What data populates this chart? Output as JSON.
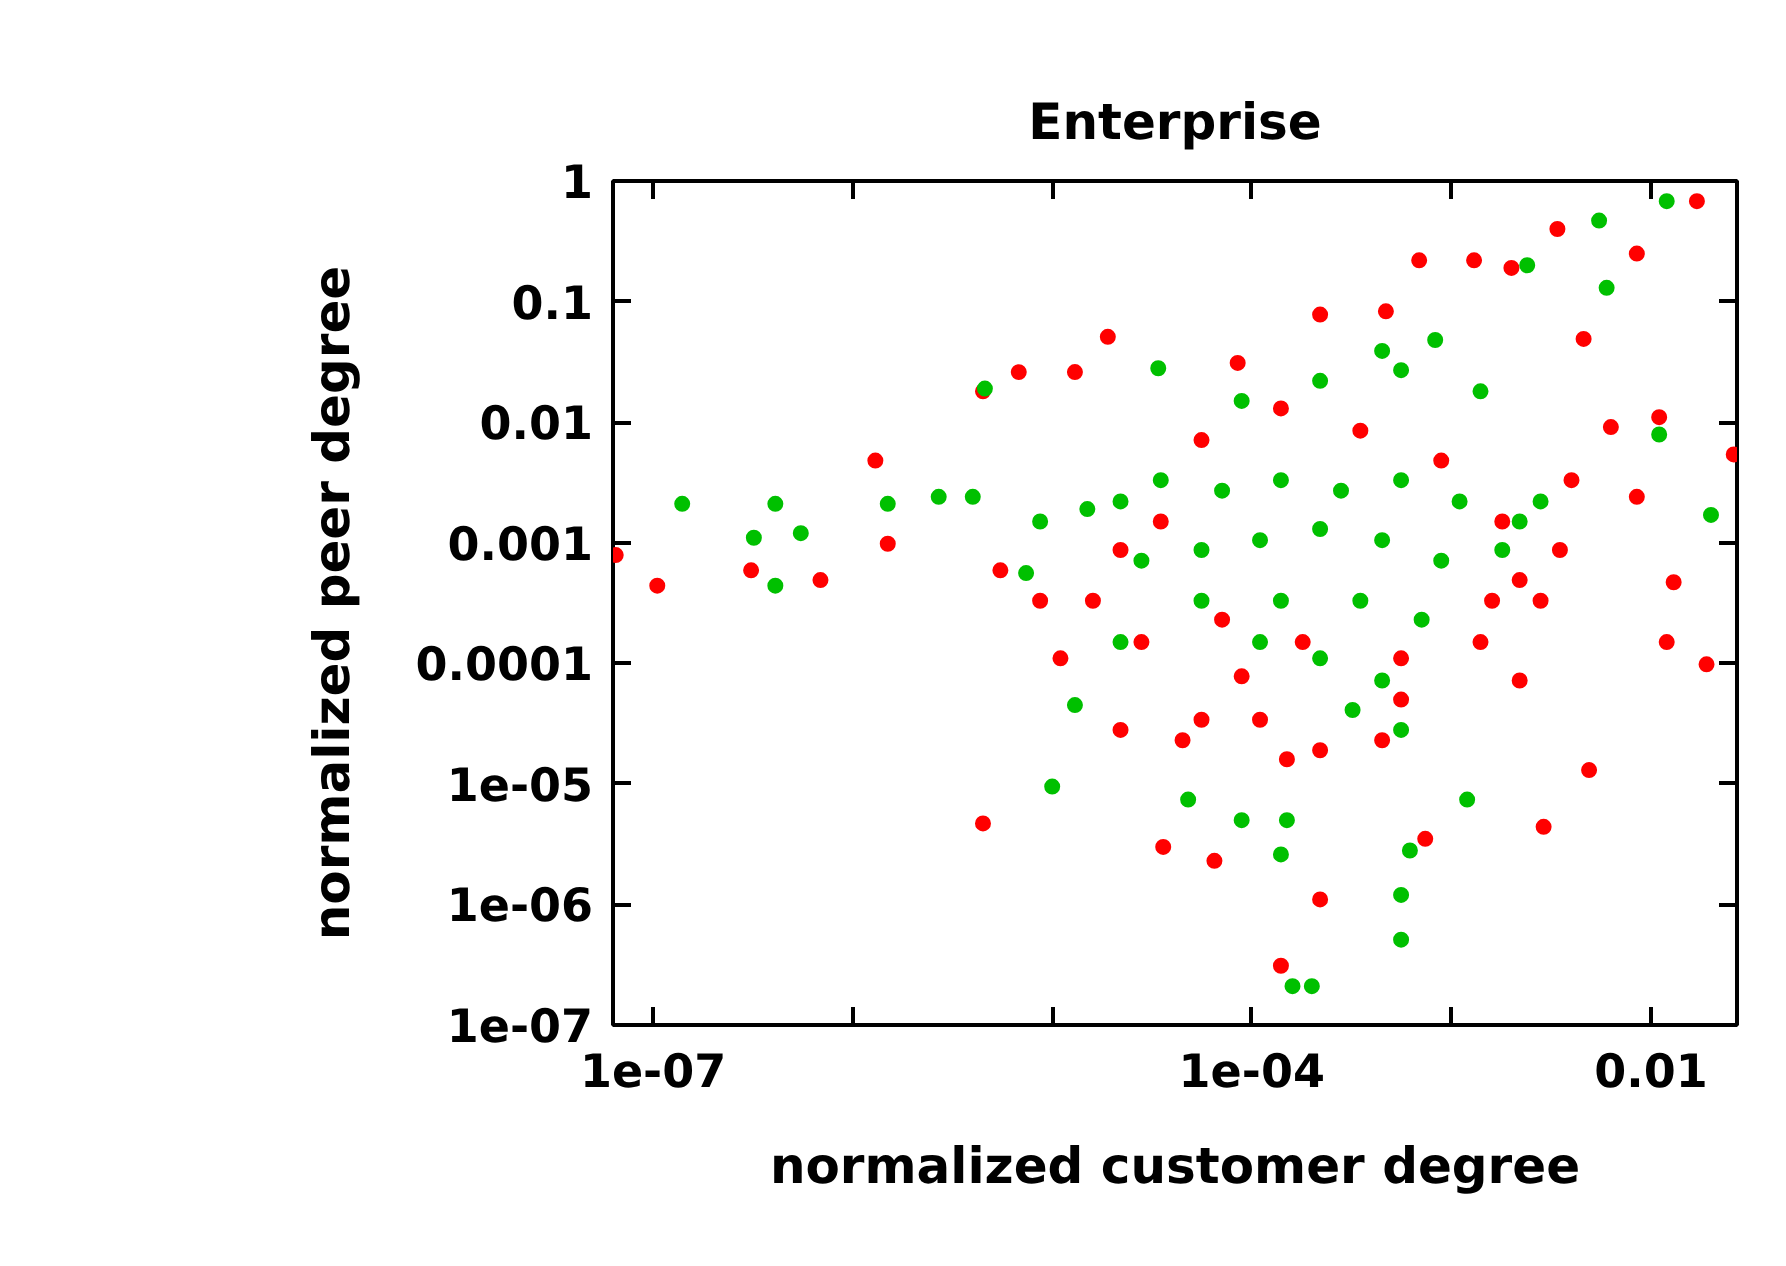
{
  "chart_data": {
    "type": "scatter",
    "title": "Enterprise",
    "xlabel": "normalized customer degree",
    "ylabel": "normalized peer degree",
    "log": "xy",
    "grid": false,
    "marker": "circle",
    "xlim": [
      6.3e-08,
      0.027
    ],
    "ylim": [
      1e-07,
      1
    ],
    "xticks": [
      {
        "value": 1e-07,
        "label": "1e-07"
      },
      {
        "value": 1e-06,
        "label": null
      },
      {
        "value": 1e-05,
        "label": null
      },
      {
        "value": 0.0001,
        "label": "1e-04"
      },
      {
        "value": 0.001,
        "label": null
      },
      0.01
    ],
    "yticks": [
      {
        "value": 1e-07,
        "label": "1e-07"
      },
      {
        "value": 1e-06,
        "label": "1e-06"
      },
      {
        "value": 1e-05,
        "label": "1e-05"
      },
      0.0001,
      0.001,
      0.01,
      0.1,
      1
    ],
    "series": [
      {
        "color": "#ff0000",
        "x": [
          6.5e-08,
          1.05e-07,
          3.1e-07,
          6.9e-07,
          1.3e-06,
          1.5e-06,
          4.5e-06,
          6.8e-06,
          4.5e-06,
          1.3e-05,
          1.9e-05,
          3.6e-05,
          6.5e-05,
          8.5e-05,
          0.00014,
          0.00022,
          0.00022,
          0.00047,
          0.00069,
          0.0013,
          0.002,
          0.0034,
          0.0085,
          0.017,
          0.0046,
          0.0063,
          0.011,
          0.012,
          0.0085,
          0.0029,
          0.0049,
          0.013,
          0.019,
          0.026,
          0.00074,
          0.00015,
          1.6e-05,
          1.1e-05,
          2.2e-05,
          5.6e-05,
          8.9e-05,
          0.00056,
          0.0022,
          0.0028,
          3.5e-05,
          5.6e-05,
          0.00014,
          0.00035,
          0.00089,
          0.0018,
          0.0022,
          0.0014,
          0.00056,
          0.00018,
          7.1e-05,
          2.8e-05,
          8.7e-06,
          5.5e-06,
          2.2e-05,
          4.5e-05,
          0.00022,
          0.00011,
          0.00045,
          0.0016,
          0.0035,
          0.004
        ],
        "values": [
          0.00079,
          0.00044,
          0.00059,
          0.00049,
          0.0048,
          0.00098,
          0.018,
          0.026,
          4.7e-06,
          0.026,
          0.051,
          3e-06,
          2.3e-06,
          0.031,
          3.1e-07,
          1.1e-06,
          0.078,
          0.083,
          0.22,
          0.22,
          0.19,
          0.4,
          0.25,
          0.68,
          0.049,
          0.0091,
          0.011,
          0.00015,
          0.0024,
          4.4e-06,
          1.3e-05,
          0.00047,
          9.8e-05,
          0.0054,
          3.5e-06,
          1.6e-05,
          0.00033,
          0.00011,
          2.8e-05,
          3.4e-05,
          7.8e-05,
          5e-05,
          7.2e-05,
          0.00033,
          0.0015,
          0.0071,
          0.013,
          0.0085,
          0.0048,
          0.0015,
          0.00049,
          0.00015,
          0.00011,
          0.00015,
          0.00023,
          0.00015,
          0.00033,
          0.00059,
          0.00087,
          2.3e-05,
          1.9e-05,
          3.4e-05,
          2.3e-05,
          0.00033,
          0.00087,
          0.0033
        ]
      },
      {
        "color": "#00c000",
        "x": [
          1.4e-07,
          3.2e-07,
          4.1e-07,
          4.1e-07,
          5.5e-07,
          1.5e-06,
          2.7e-06,
          4.6e-06,
          4e-06,
          1e-05,
          7.4e-06,
          1.3e-05,
          3.4e-05,
          8.9e-05,
          0.00016,
          0.0002,
          0.00056,
          0.00062,
          0.0012,
          0.00056,
          0.00083,
          0.0024,
          0.0055,
          0.006,
          0.012,
          0.011,
          0.02,
          4.8e-05,
          0.00015,
          0.00014,
          2.2e-05,
          3.5e-05,
          7.1e-05,
          0.00014,
          0.00028,
          0.00056,
          0.0011,
          0.0022,
          2.8e-05,
          5.6e-05,
          0.00011,
          0.00022,
          0.00045,
          0.00089,
          0.0018,
          5.6e-05,
          0.00014,
          0.00035,
          0.00071,
          0.00022,
          0.00045,
          0.00011,
          8.9e-05,
          0.00022,
          0.00056,
          0.00045,
          0.0014,
          1.5e-05,
          8.7e-06,
          2.2e-05,
          0.0028,
          0.00032,
          0.00056
        ],
        "values": [
          0.0021,
          0.0011,
          0.0021,
          0.00044,
          0.0012,
          0.0021,
          0.0024,
          0.019,
          0.0024,
          9.5e-06,
          0.00056,
          4.5e-05,
          0.028,
          5e-06,
          2.1e-07,
          2.1e-07,
          1.2e-06,
          2.8e-06,
          7.4e-06,
          5.1e-07,
          0.048,
          0.2,
          0.47,
          0.13,
          0.68,
          0.0079,
          0.0017,
          7.4e-06,
          5e-06,
          2.6e-06,
          0.0022,
          0.0033,
          0.0027,
          0.0033,
          0.0027,
          0.0033,
          0.0022,
          0.0015,
          0.00071,
          0.00087,
          0.00105,
          0.0013,
          0.00105,
          0.00071,
          0.00087,
          0.00033,
          0.00033,
          0.00033,
          0.00023,
          0.00011,
          7.2e-05,
          0.00015,
          0.015,
          0.022,
          0.027,
          0.039,
          0.018,
          0.0019,
          0.0015,
          0.00015,
          0.0022,
          4.1e-05,
          2.8e-05
        ]
      }
    ]
  }
}
